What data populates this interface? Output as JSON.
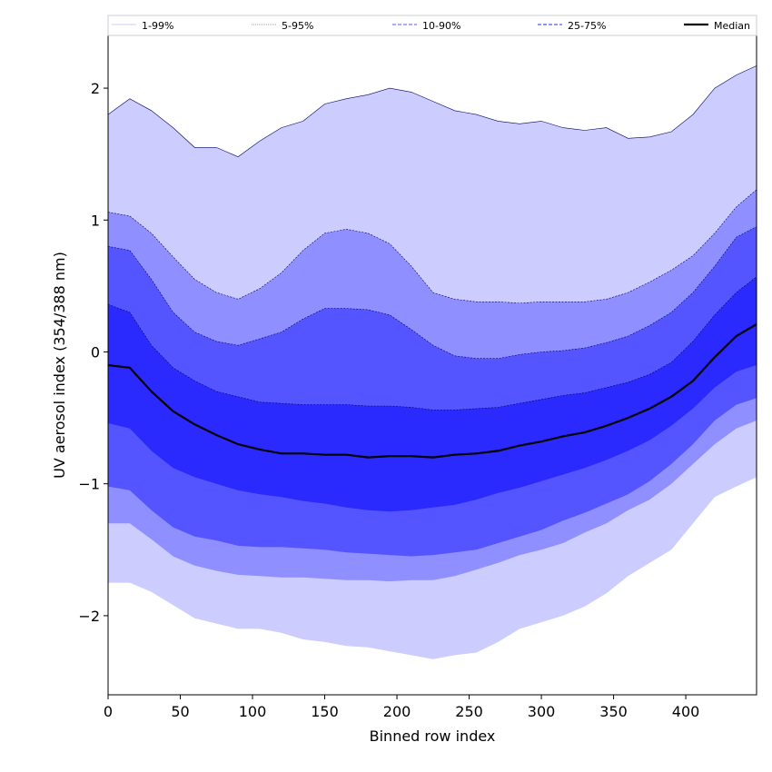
{
  "chart_data": {
    "type": "area",
    "title": "",
    "xlabel": "Binned row index",
    "ylabel": "UV aerosol index (354/388 nm)",
    "xlim": [
      0,
      449
    ],
    "ylim": [
      -2.6,
      2.4
    ],
    "xticks": [
      0,
      50,
      100,
      150,
      200,
      250,
      300,
      350,
      400
    ],
    "yticks": [
      -2,
      -1,
      0,
      1,
      2
    ],
    "ytick_labels": [
      "−2",
      "−1",
      "0",
      "1",
      "2"
    ],
    "legend": {
      "placement": "top",
      "entries": [
        {
          "label": "1-99%",
          "color": "#ccccff",
          "style": "solid"
        },
        {
          "label": "5-95%",
          "color": "#8f8fff",
          "style": "dotted"
        },
        {
          "label": "10-90%",
          "color": "#5555ff",
          "style": "dashed"
        },
        {
          "label": "25-75%",
          "color": "#2a2aff",
          "style": "dashed"
        },
        {
          "label": "Median",
          "color": "#000000",
          "style": "solid"
        }
      ]
    },
    "x": [
      0,
      15,
      30,
      45,
      60,
      75,
      90,
      105,
      120,
      135,
      150,
      165,
      180,
      195,
      210,
      225,
      240,
      255,
      270,
      285,
      300,
      315,
      330,
      345,
      360,
      375,
      390,
      405,
      420,
      435,
      449
    ],
    "bands": [
      {
        "name": "1-99%",
        "color": "#ccccff",
        "upper": [
          1.8,
          1.92,
          1.83,
          1.7,
          1.55,
          1.55,
          1.48,
          1.6,
          1.7,
          1.75,
          1.88,
          1.92,
          1.95,
          2.0,
          1.97,
          1.9,
          1.83,
          1.8,
          1.75,
          1.73,
          1.75,
          1.7,
          1.68,
          1.7,
          1.62,
          1.63,
          1.67,
          1.8,
          2.0,
          2.1,
          2.17
        ],
        "lower": [
          -1.75,
          -1.75,
          -1.82,
          -1.92,
          -2.02,
          -2.06,
          -2.1,
          -2.1,
          -2.13,
          -2.18,
          -2.2,
          -2.23,
          -2.24,
          -2.27,
          -2.3,
          -2.33,
          -2.3,
          -2.28,
          -2.2,
          -2.1,
          -2.05,
          -2.0,
          -1.93,
          -1.83,
          -1.7,
          -1.6,
          -1.5,
          -1.3,
          -1.1,
          -1.02,
          -0.95
        ]
      },
      {
        "name": "5-95%",
        "color": "#8f8fff",
        "upper": [
          1.06,
          1.03,
          0.9,
          0.72,
          0.55,
          0.45,
          0.4,
          0.48,
          0.6,
          0.77,
          0.9,
          0.93,
          0.9,
          0.82,
          0.65,
          0.45,
          0.4,
          0.38,
          0.38,
          0.37,
          0.38,
          0.38,
          0.38,
          0.4,
          0.45,
          0.53,
          0.62,
          0.73,
          0.9,
          1.1,
          1.23
        ],
        "lower": [
          -1.3,
          -1.3,
          -1.42,
          -1.55,
          -1.62,
          -1.66,
          -1.69,
          -1.7,
          -1.71,
          -1.71,
          -1.72,
          -1.73,
          -1.73,
          -1.74,
          -1.73,
          -1.73,
          -1.7,
          -1.65,
          -1.6,
          -1.54,
          -1.5,
          -1.45,
          -1.37,
          -1.3,
          -1.2,
          -1.12,
          -1.0,
          -0.85,
          -0.7,
          -0.58,
          -0.52
        ]
      },
      {
        "name": "10-90%",
        "color": "#5555ff",
        "upper": [
          0.8,
          0.77,
          0.55,
          0.3,
          0.15,
          0.08,
          0.05,
          0.1,
          0.15,
          0.25,
          0.33,
          0.33,
          0.32,
          0.28,
          0.17,
          0.05,
          -0.03,
          -0.05,
          -0.05,
          -0.02,
          0.0,
          0.01,
          0.03,
          0.07,
          0.12,
          0.2,
          0.3,
          0.45,
          0.65,
          0.87,
          0.95
        ],
        "lower": [
          -1.02,
          -1.05,
          -1.2,
          -1.33,
          -1.4,
          -1.43,
          -1.47,
          -1.48,
          -1.48,
          -1.49,
          -1.5,
          -1.52,
          -1.53,
          -1.54,
          -1.55,
          -1.54,
          -1.52,
          -1.5,
          -1.45,
          -1.4,
          -1.35,
          -1.28,
          -1.22,
          -1.15,
          -1.08,
          -0.98,
          -0.85,
          -0.7,
          -0.52,
          -0.4,
          -0.35
        ]
      },
      {
        "name": "25-75%",
        "color": "#2a2aff",
        "upper": [
          0.36,
          0.3,
          0.05,
          -0.12,
          -0.22,
          -0.3,
          -0.34,
          -0.38,
          -0.39,
          -0.4,
          -0.4,
          -0.4,
          -0.41,
          -0.41,
          -0.42,
          -0.44,
          -0.44,
          -0.43,
          -0.42,
          -0.39,
          -0.36,
          -0.33,
          -0.31,
          -0.27,
          -0.23,
          -0.17,
          -0.08,
          0.08,
          0.28,
          0.45,
          0.57
        ],
        "lower": [
          -0.54,
          -0.58,
          -0.75,
          -0.88,
          -0.95,
          -1.0,
          -1.05,
          -1.08,
          -1.1,
          -1.13,
          -1.15,
          -1.18,
          -1.2,
          -1.21,
          -1.2,
          -1.18,
          -1.16,
          -1.12,
          -1.07,
          -1.03,
          -0.98,
          -0.93,
          -0.88,
          -0.82,
          -0.75,
          -0.67,
          -0.56,
          -0.43,
          -0.27,
          -0.15,
          -0.1
        ]
      }
    ],
    "median": {
      "name": "Median",
      "color": "#000000",
      "values": [
        -0.1,
        -0.12,
        -0.3,
        -0.45,
        -0.55,
        -0.63,
        -0.7,
        -0.74,
        -0.77,
        -0.77,
        -0.78,
        -0.78,
        -0.8,
        -0.79,
        -0.79,
        -0.8,
        -0.78,
        -0.77,
        -0.75,
        -0.71,
        -0.68,
        -0.64,
        -0.61,
        -0.56,
        -0.5,
        -0.43,
        -0.34,
        -0.22,
        -0.04,
        0.12,
        0.21
      ]
    }
  }
}
